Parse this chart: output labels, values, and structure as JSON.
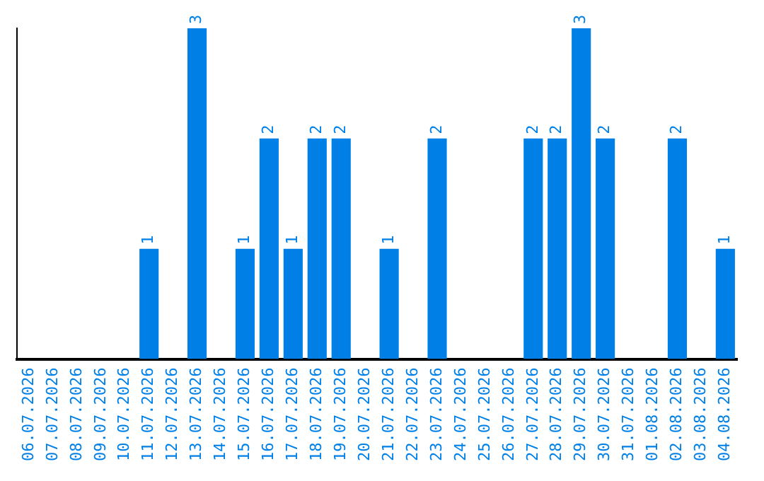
{
  "chart_data": {
    "type": "bar",
    "categories": [
      "06.07.2026",
      "07.07.2026",
      "08.07.2026",
      "09.07.2026",
      "10.07.2026",
      "11.07.2026",
      "12.07.2026",
      "13.07.2026",
      "14.07.2026",
      "15.07.2026",
      "16.07.2026",
      "17.07.2026",
      "18.07.2026",
      "19.07.2026",
      "20.07.2026",
      "21.07.2026",
      "22.07.2026",
      "23.07.2026",
      "24.07.2026",
      "25.07.2026",
      "26.07.2026",
      "27.07.2026",
      "28.07.2026",
      "29.07.2026",
      "30.07.2026",
      "31.07.2026",
      "01.08.2026",
      "02.08.2026",
      "03.08.2026",
      "04.08.2026"
    ],
    "values": [
      0,
      0,
      0,
      0,
      0,
      1,
      0,
      3,
      0,
      1,
      2,
      1,
      2,
      2,
      0,
      1,
      0,
      2,
      0,
      0,
      0,
      2,
      2,
      3,
      2,
      0,
      0,
      2,
      0,
      1
    ],
    "value_labels": [
      null,
      null,
      null,
      null,
      null,
      "1",
      null,
      "3",
      null,
      "1",
      "2",
      "1",
      "2",
      "2",
      null,
      "1",
      null,
      "2",
      null,
      null,
      null,
      "2",
      "2",
      "3",
      "2",
      null,
      null,
      "2",
      null,
      "1"
    ],
    "color": "#0080e6",
    "grid": false,
    "legend": false,
    "tick_labels": "x"
  }
}
